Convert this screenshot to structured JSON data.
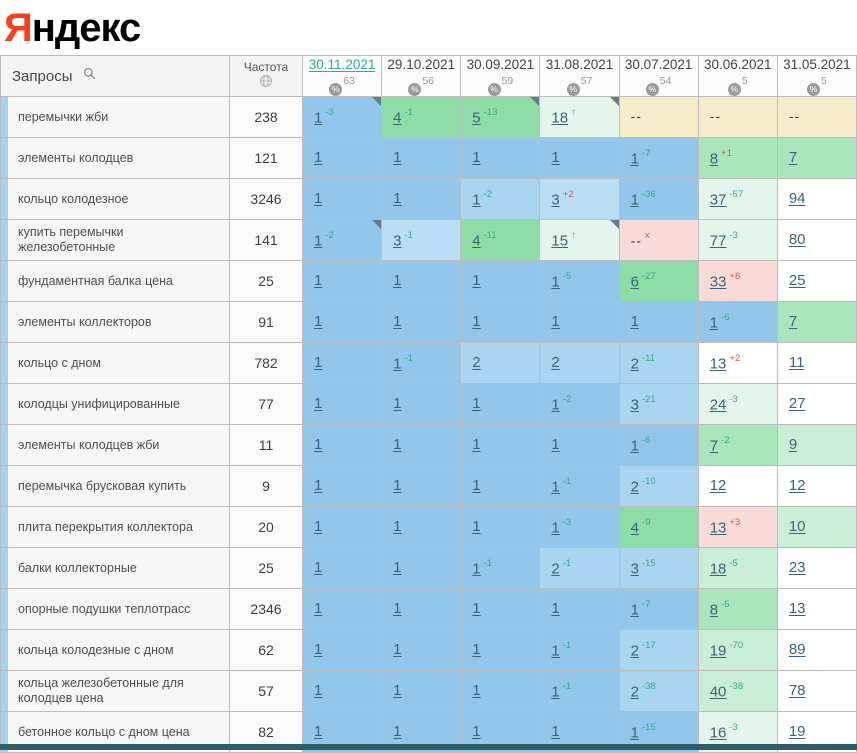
{
  "logo": {
    "first_letter": "Я",
    "rest": "ндекс"
  },
  "header": {
    "queries_label": "Запросы",
    "frequency_label": "Частота",
    "dates": [
      {
        "label": "30.11.2021",
        "pct": "63",
        "active": true
      },
      {
        "label": "29.10.2021",
        "pct": "56",
        "active": false
      },
      {
        "label": "30.09.2021",
        "pct": "59",
        "active": false
      },
      {
        "label": "31.08.2021",
        "pct": "57",
        "active": false
      },
      {
        "label": "30.07.2021",
        "pct": "54",
        "active": false
      },
      {
        "label": "30.06.2021",
        "pct": "5",
        "active": false
      },
      {
        "label": "31.05.2021",
        "pct": "5",
        "active": false
      }
    ]
  },
  "palette": {
    "b1": "#92c6ea",
    "b2": "#a9d5f0",
    "b3": "#badef4",
    "g": "#8edda6",
    "g2": "#a9e6bc",
    "gl": "#c9efd7",
    "gx": "#e4f6ec",
    "beige": "#f6ecca",
    "pink": "#f9dcd8",
    "w": "#ffffff",
    "delta_up": "#2fae8f",
    "delta_down": "#e2574b",
    "active_date": "#2aaf97",
    "pos_link": "#3c6478",
    "row_strip": "#a8d3f0",
    "bottom_bar": "#2d5f6b",
    "logo_red": "#fb3f1d"
  },
  "rows": [
    {
      "keyword": "перемычки жби",
      "frequency": "238",
      "cells": [
        {
          "p": "1",
          "d": "-3",
          "dc": "g",
          "bg": "b1",
          "c": true
        },
        {
          "p": "4",
          "d": "-1",
          "dc": "g",
          "bg": "g"
        },
        {
          "p": "5",
          "d": "-13",
          "dc": "g",
          "bg": "g",
          "c": true
        },
        {
          "p": "18",
          "d": "↑",
          "dc": "g",
          "bg": "gx",
          "c": true
        },
        {
          "p": "--",
          "bg": "beige"
        },
        {
          "p": "--",
          "bg": "beige"
        },
        {
          "p": "--",
          "bg": "beige"
        }
      ]
    },
    {
      "keyword": "элементы колодцев",
      "frequency": "121",
      "cells": [
        {
          "p": "1",
          "bg": "b1"
        },
        {
          "p": "1",
          "bg": "b1"
        },
        {
          "p": "1",
          "bg": "b1"
        },
        {
          "p": "1",
          "bg": "b1"
        },
        {
          "p": "1",
          "d": "-7",
          "dc": "g",
          "bg": "b1"
        },
        {
          "p": "8",
          "d": "+1",
          "dc": "r",
          "bg": "g2"
        },
        {
          "p": "7",
          "bg": "g2"
        }
      ]
    },
    {
      "keyword": "кольцо колодезное",
      "frequency": "3246",
      "cells": [
        {
          "p": "1",
          "bg": "b1"
        },
        {
          "p": "1",
          "bg": "b1"
        },
        {
          "p": "1",
          "d": "-2",
          "dc": "g",
          "bg": "b2"
        },
        {
          "p": "3",
          "d": "+2",
          "dc": "r",
          "bg": "b3"
        },
        {
          "p": "1",
          "d": "-36",
          "dc": "g",
          "bg": "b1"
        },
        {
          "p": "37",
          "d": "-57",
          "dc": "g",
          "bg": "gx"
        },
        {
          "p": "94",
          "bg": "w"
        }
      ]
    },
    {
      "keyword": "купить перемычки железобетонные",
      "frequency": "141",
      "cells": [
        {
          "p": "1",
          "d": "-2",
          "dc": "g",
          "bg": "b1",
          "c": true
        },
        {
          "p": "3",
          "d": "-1",
          "dc": "g",
          "bg": "b3"
        },
        {
          "p": "4",
          "d": "-11",
          "dc": "g",
          "bg": "g"
        },
        {
          "p": "15",
          "d": "↑",
          "dc": "g",
          "bg": "gx",
          "c": true
        },
        {
          "p": "--",
          "d": "x",
          "dc": "r",
          "bg": "pink"
        },
        {
          "p": "77",
          "d": "-3",
          "dc": "g",
          "bg": "gx"
        },
        {
          "p": "80",
          "bg": "w"
        }
      ]
    },
    {
      "keyword": "фундаментная балка цена",
      "frequency": "25",
      "cells": [
        {
          "p": "1",
          "bg": "b1"
        },
        {
          "p": "1",
          "bg": "b1"
        },
        {
          "p": "1",
          "bg": "b1"
        },
        {
          "p": "1",
          "d": "-5",
          "dc": "g",
          "bg": "b1"
        },
        {
          "p": "6",
          "d": "-27",
          "dc": "g",
          "bg": "g"
        },
        {
          "p": "33",
          "d": "+8",
          "dc": "r",
          "bg": "pink"
        },
        {
          "p": "25",
          "bg": "w"
        }
      ]
    },
    {
      "keyword": "элементы коллекторов",
      "frequency": "91",
      "cells": [
        {
          "p": "1",
          "bg": "b1"
        },
        {
          "p": "1",
          "bg": "b1"
        },
        {
          "p": "1",
          "bg": "b1"
        },
        {
          "p": "1",
          "bg": "b1"
        },
        {
          "p": "1",
          "bg": "b1"
        },
        {
          "p": "1",
          "d": "-6",
          "dc": "g",
          "bg": "b1"
        },
        {
          "p": "7",
          "bg": "g2"
        }
      ]
    },
    {
      "keyword": "кольцо с дном",
      "frequency": "782",
      "cells": [
        {
          "p": "1",
          "bg": "b1"
        },
        {
          "p": "1",
          "d": "-1",
          "dc": "g",
          "bg": "b1"
        },
        {
          "p": "2",
          "bg": "b2"
        },
        {
          "p": "2",
          "bg": "b2"
        },
        {
          "p": "2",
          "d": "-11",
          "dc": "g",
          "bg": "b2"
        },
        {
          "p": "13",
          "d": "+2",
          "dc": "r",
          "bg": "w"
        },
        {
          "p": "11",
          "bg": "w"
        }
      ]
    },
    {
      "keyword": "колодцы унифицированные",
      "frequency": "77",
      "cells": [
        {
          "p": "1",
          "bg": "b1"
        },
        {
          "p": "1",
          "bg": "b1"
        },
        {
          "p": "1",
          "bg": "b1"
        },
        {
          "p": "1",
          "d": "-2",
          "dc": "g",
          "bg": "b1"
        },
        {
          "p": "3",
          "d": "-21",
          "dc": "g",
          "bg": "b2"
        },
        {
          "p": "24",
          "d": "-3",
          "dc": "g",
          "bg": "gx"
        },
        {
          "p": "27",
          "bg": "w"
        }
      ]
    },
    {
      "keyword": "элементы колодцев жби",
      "frequency": "11",
      "cells": [
        {
          "p": "1",
          "bg": "b1"
        },
        {
          "p": "1",
          "bg": "b1"
        },
        {
          "p": "1",
          "bg": "b1"
        },
        {
          "p": "1",
          "bg": "b1"
        },
        {
          "p": "1",
          "d": "-6",
          "dc": "g",
          "bg": "b1"
        },
        {
          "p": "7",
          "d": "-2",
          "dc": "g",
          "bg": "g2"
        },
        {
          "p": "9",
          "bg": "gl"
        }
      ]
    },
    {
      "keyword": "перемычка брусковая купить",
      "frequency": "9",
      "cells": [
        {
          "p": "1",
          "bg": "b1"
        },
        {
          "p": "1",
          "bg": "b1"
        },
        {
          "p": "1",
          "bg": "b1"
        },
        {
          "p": "1",
          "d": "-1",
          "dc": "g",
          "bg": "b1"
        },
        {
          "p": "2",
          "d": "-10",
          "dc": "g",
          "bg": "b2"
        },
        {
          "p": "12",
          "bg": "w"
        },
        {
          "p": "12",
          "bg": "w"
        }
      ]
    },
    {
      "keyword": "плита перекрытия коллектора",
      "frequency": "20",
      "cells": [
        {
          "p": "1",
          "bg": "b1"
        },
        {
          "p": "1",
          "bg": "b1"
        },
        {
          "p": "1",
          "bg": "b1"
        },
        {
          "p": "1",
          "d": "-3",
          "dc": "g",
          "bg": "b1"
        },
        {
          "p": "4",
          "d": "-9",
          "dc": "g",
          "bg": "g"
        },
        {
          "p": "13",
          "d": "+3",
          "dc": "r",
          "bg": "pink"
        },
        {
          "p": "10",
          "bg": "gl"
        }
      ]
    },
    {
      "keyword": "балки коллекторные",
      "frequency": "25",
      "cells": [
        {
          "p": "1",
          "bg": "b1"
        },
        {
          "p": "1",
          "bg": "b1"
        },
        {
          "p": "1",
          "d": "-1",
          "dc": "g",
          "bg": "b1"
        },
        {
          "p": "2",
          "d": "-1",
          "dc": "g",
          "bg": "b2"
        },
        {
          "p": "3",
          "d": "-15",
          "dc": "g",
          "bg": "b2"
        },
        {
          "p": "18",
          "d": "-5",
          "dc": "g",
          "bg": "gl"
        },
        {
          "p": "23",
          "bg": "w"
        }
      ]
    },
    {
      "keyword": "опорные подушки теплотрасс",
      "frequency": "2346",
      "cells": [
        {
          "p": "1",
          "bg": "b1"
        },
        {
          "p": "1",
          "bg": "b1"
        },
        {
          "p": "1",
          "bg": "b1"
        },
        {
          "p": "1",
          "bg": "b1"
        },
        {
          "p": "1",
          "d": "-7",
          "dc": "g",
          "bg": "b1"
        },
        {
          "p": "8",
          "d": "-5",
          "dc": "g",
          "bg": "g2"
        },
        {
          "p": "13",
          "bg": "w"
        }
      ]
    },
    {
      "keyword": "кольца колодезные с дном",
      "frequency": "62",
      "cells": [
        {
          "p": "1",
          "bg": "b1"
        },
        {
          "p": "1",
          "bg": "b1"
        },
        {
          "p": "1",
          "bg": "b1"
        },
        {
          "p": "1",
          "d": "-1",
          "dc": "g",
          "bg": "b1"
        },
        {
          "p": "2",
          "d": "-17",
          "dc": "g",
          "bg": "b2"
        },
        {
          "p": "19",
          "d": "-70",
          "dc": "g",
          "bg": "gl"
        },
        {
          "p": "89",
          "bg": "w"
        }
      ]
    },
    {
      "keyword": "кольца железобетонные для колодцев цена",
      "frequency": "57",
      "cells": [
        {
          "p": "1",
          "bg": "b1"
        },
        {
          "p": "1",
          "bg": "b1"
        },
        {
          "p": "1",
          "bg": "b1"
        },
        {
          "p": "1",
          "d": "-1",
          "dc": "g",
          "bg": "b1"
        },
        {
          "p": "2",
          "d": "-38",
          "dc": "g",
          "bg": "b2"
        },
        {
          "p": "40",
          "d": "-38",
          "dc": "g",
          "bg": "gl"
        },
        {
          "p": "78",
          "bg": "w"
        }
      ]
    },
    {
      "keyword": "бетонное кольцо с дном цена",
      "frequency": "82",
      "cells": [
        {
          "p": "1",
          "bg": "b1"
        },
        {
          "p": "1",
          "bg": "b1"
        },
        {
          "p": "1",
          "bg": "b1"
        },
        {
          "p": "1",
          "bg": "b1"
        },
        {
          "p": "1",
          "d": "-15",
          "dc": "g",
          "bg": "b1"
        },
        {
          "p": "16",
          "d": "-3",
          "dc": "g",
          "bg": "gx"
        },
        {
          "p": "19",
          "bg": "w"
        }
      ]
    }
  ]
}
